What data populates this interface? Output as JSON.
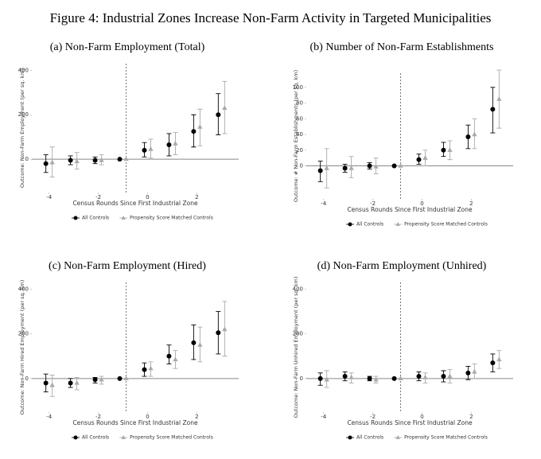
{
  "figure_title": "Figure 4: Industrial Zones Increase Non-Farm Activity in Targeted Municipalities",
  "chart_data": [
    {
      "type": "errorbar",
      "title": "(a) Non-Farm Employment (Total)",
      "x_label": "Census Rounds Since First Industrial Zone",
      "y_label": "Outcome: Non-Farm Employment (per sq. km)",
      "xlim": [
        -4.7,
        3.7
      ],
      "xticks": [
        -4,
        -2,
        0,
        2
      ],
      "ylim": [
        -150,
        430
      ],
      "yticks": [
        0,
        200,
        400
      ],
      "hline": 0,
      "vline": -1,
      "legend": "bottom",
      "x": [
        -4,
        -3,
        -2,
        -1,
        0,
        1,
        2,
        3
      ],
      "series": [
        {
          "name": "All Controls",
          "color": "#000000",
          "marker": "circle",
          "values": [
            -20,
            -5,
            -5,
            0,
            40,
            65,
            125,
            200
          ],
          "lower": [
            -60,
            -25,
            -20,
            0,
            10,
            15,
            55,
            110
          ],
          "upper": [
            20,
            15,
            10,
            0,
            75,
            115,
            200,
            295
          ]
        },
        {
          "name": "Propensity Score Matched Controls",
          "color": "#aaaaaa",
          "marker": "triangle",
          "values": [
            -15,
            -10,
            -5,
            0,
            45,
            70,
            145,
            230
          ],
          "lower": [
            -80,
            -45,
            -25,
            0,
            5,
            20,
            60,
            115
          ],
          "upper": [
            55,
            30,
            20,
            0,
            90,
            120,
            225,
            350
          ]
        }
      ]
    },
    {
      "type": "errorbar",
      "title": "(b) Number of Non-Farm Establishments",
      "x_label": "Census Rounds Since First Industrial Zone",
      "y_label": "Outcome: # Non-Farm Establishments (per sq. km)",
      "xlim": [
        -4.7,
        3.7
      ],
      "xticks": [
        -4,
        -2,
        0,
        2
      ],
      "ylim": [
        -42,
        118
      ],
      "yticks": [
        0,
        20,
        40,
        60,
        80,
        100
      ],
      "hline": 0,
      "vline": -1,
      "legend": "bottom",
      "x": [
        -4,
        -3,
        -2,
        -1,
        0,
        1,
        2,
        3
      ],
      "series": [
        {
          "name": "All Controls",
          "color": "#000000",
          "marker": "circle",
          "values": [
            -6,
            -3,
            0,
            0,
            8,
            20,
            37,
            72
          ],
          "lower": [
            -20,
            -8,
            -4,
            0,
            2,
            12,
            22,
            42
          ],
          "upper": [
            6,
            2,
            4,
            0,
            15,
            30,
            52,
            100
          ]
        },
        {
          "name": "Propensity Score Matched Controls",
          "color": "#aaaaaa",
          "marker": "triangle",
          "values": [
            -3,
            -3,
            -1,
            0,
            10,
            20,
            40,
            85
          ],
          "lower": [
            -28,
            -15,
            -10,
            0,
            0,
            8,
            22,
            48
          ],
          "upper": [
            22,
            12,
            10,
            0,
            20,
            32,
            60,
            122
          ]
        }
      ]
    },
    {
      "type": "errorbar",
      "title": "(c) Non-Farm Employment (Hired)",
      "x_label": "Census Rounds Since First Industrial Zone",
      "y_label": "Outcome: Non-Farm Hired Employment (per sq. km)",
      "xlim": [
        -4.7,
        3.7
      ],
      "xticks": [
        -4,
        -2,
        0,
        2
      ],
      "ylim": [
        -150,
        430
      ],
      "yticks": [
        0,
        200,
        400
      ],
      "hline": 0,
      "vline": -1,
      "legend": "bottom",
      "x": [
        -4,
        -3,
        -2,
        -1,
        0,
        1,
        2,
        3
      ],
      "series": [
        {
          "name": "All Controls",
          "color": "#000000",
          "marker": "circle",
          "values": [
            -20,
            -20,
            -5,
            0,
            40,
            100,
            160,
            205
          ],
          "lower": [
            -60,
            -40,
            -20,
            0,
            10,
            65,
            85,
            110
          ],
          "upper": [
            20,
            0,
            5,
            0,
            70,
            150,
            240,
            300
          ]
        },
        {
          "name": "Propensity Score Matched Controls",
          "color": "#aaaaaa",
          "marker": "triangle",
          "values": [
            -30,
            -20,
            -5,
            0,
            45,
            85,
            150,
            220
          ],
          "lower": [
            -80,
            -50,
            -25,
            0,
            10,
            45,
            75,
            100
          ],
          "upper": [
            15,
            5,
            10,
            0,
            75,
            125,
            230,
            345
          ]
        }
      ]
    },
    {
      "type": "errorbar",
      "title": "(d) Non-Farm Employment (Unhired)",
      "x_label": "Census Rounds Since First Industrial Zone",
      "y_label": "Outcome: Non-Farm Unhired Employment (per sq. km)",
      "xlim": [
        -4.7,
        3.7
      ],
      "xticks": [
        -4,
        -2,
        0,
        2
      ],
      "ylim": [
        -150,
        430
      ],
      "yticks": [
        0,
        200,
        400
      ],
      "hline": 0,
      "vline": -1,
      "legend": "bottom",
      "x": [
        -4,
        -3,
        -2,
        -1,
        0,
        1,
        2,
        3
      ],
      "series": [
        {
          "name": "All Controls",
          "color": "#000000",
          "marker": "circle",
          "values": [
            0,
            10,
            0,
            0,
            10,
            10,
            25,
            70
          ],
          "lower": [
            -30,
            -10,
            -10,
            0,
            -10,
            -15,
            -5,
            30
          ],
          "upper": [
            25,
            30,
            10,
            0,
            30,
            35,
            55,
            110
          ]
        },
        {
          "name": "Propensity Score Matched Controls",
          "color": "#aaaaaa",
          "marker": "triangle",
          "values": [
            -5,
            5,
            -5,
            0,
            5,
            10,
            30,
            85
          ],
          "lower": [
            -40,
            -20,
            -20,
            0,
            -20,
            -20,
            0,
            45
          ],
          "upper": [
            35,
            25,
            10,
            0,
            25,
            40,
            65,
            125
          ]
        }
      ]
    }
  ]
}
